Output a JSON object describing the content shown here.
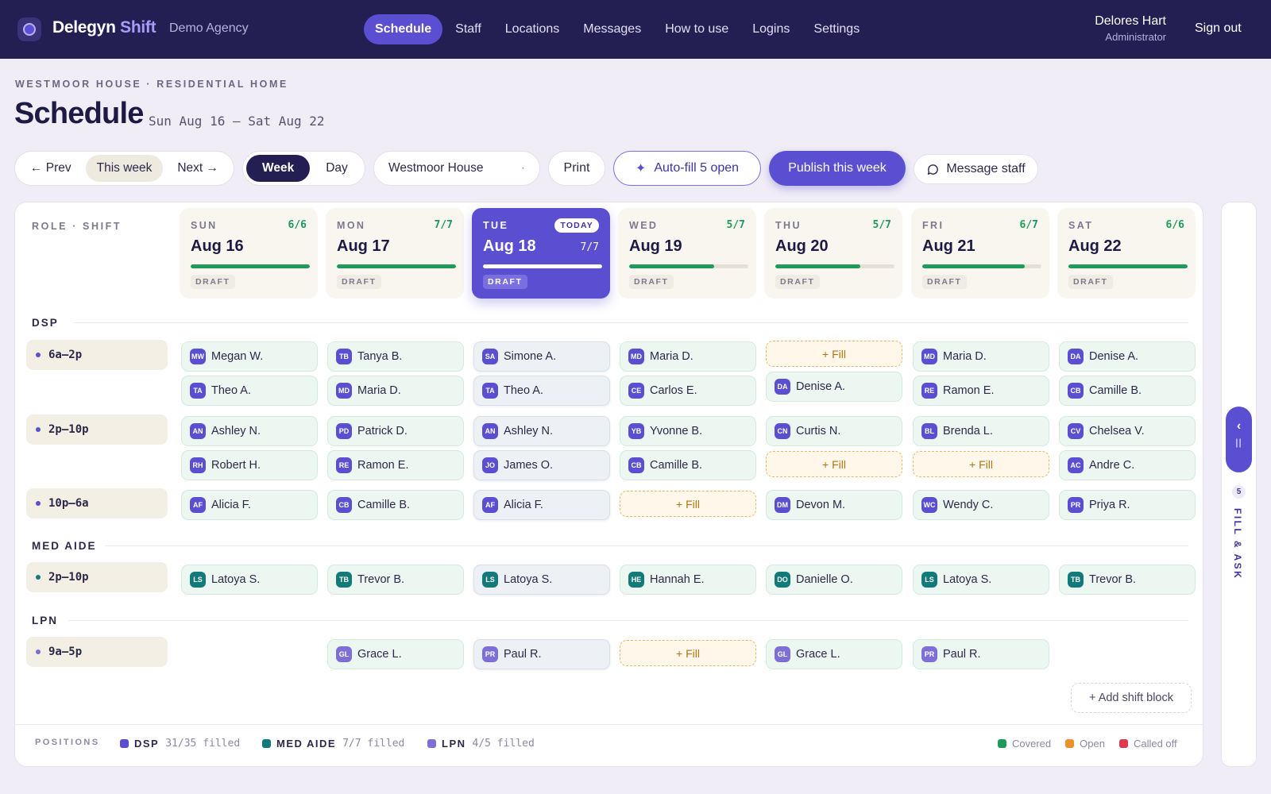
{
  "topbar": {
    "brand_main": "Delegyn",
    "brand_accent": "Shift",
    "agency": "Demo Agency",
    "nav": [
      {
        "label": "Schedule",
        "active": true
      },
      {
        "label": "Staff"
      },
      {
        "label": "Locations"
      },
      {
        "label": "Messages"
      },
      {
        "label": "How to use"
      },
      {
        "label": "Logins"
      },
      {
        "label": "Settings"
      }
    ],
    "user_name": "Delores Hart",
    "user_role": "Administrator",
    "sign_out": "Sign out"
  },
  "header": {
    "breadcrumb": "WESTMOOR HOUSE · RESIDENTIAL HOME",
    "title": "Schedule",
    "range": "Sun Aug 16 — Sat Aug 22"
  },
  "toolbar": {
    "prev": "← Prev",
    "this_week": "This week",
    "next": "Next →",
    "week": "Week",
    "day": "Day",
    "location": "Westmoor House",
    "location_caret": "·",
    "print": "Print",
    "autofill_icon": "✦",
    "autofill": "Auto-fill 5 open",
    "publish": "Publish this week",
    "message": "Message staff"
  },
  "grid": {
    "role_shift_header": "ROLE · SHIFT",
    "draft_label": "DRAFT",
    "today_label": "TODAY",
    "days": [
      {
        "dow": "SUN",
        "date": "Aug 16",
        "count": "6/6",
        "fill": 1.0
      },
      {
        "dow": "MON",
        "date": "Aug 17",
        "count": "7/7",
        "fill": 1.0
      },
      {
        "dow": "TUE",
        "date": "Aug 18",
        "count": "7/7",
        "fill": 1.0,
        "today": true
      },
      {
        "dow": "WED",
        "date": "Aug 19",
        "count": "5/7",
        "fill": 0.714
      },
      {
        "dow": "THU",
        "date": "Aug 20",
        "count": "5/7",
        "fill": 0.714
      },
      {
        "dow": "FRI",
        "date": "Aug 21",
        "count": "6/7",
        "fill": 0.857
      },
      {
        "dow": "SAT",
        "date": "Aug 22",
        "count": "6/6",
        "fill": 1.0
      }
    ],
    "sections": {
      "dsp": "DSP",
      "med_aide": "MED AIDE",
      "lpn": "LPN"
    },
    "shifts": {
      "dsp_1": "6a–2p",
      "dsp_2": "2p–10p",
      "dsp_3": "10p–6a",
      "med_1": "2p–10p",
      "lpn_1": "9a–5p"
    },
    "fill_label": "+ Fill",
    "add_shift_block": "+ Add shift block",
    "dsp_color": "#5a4fd0",
    "med_color": "#137a7a",
    "lpn_color": "#7e6fd6",
    "assignments": {
      "r0": [
        [
          {
            "i": "MW",
            "n": "Megan W."
          },
          {
            "i": "TA",
            "n": "Theo A."
          }
        ],
        [
          {
            "i": "TB",
            "n": "Tanya B."
          },
          {
            "i": "MD",
            "n": "Maria D."
          }
        ],
        [
          {
            "i": "SA",
            "n": "Simone A."
          },
          {
            "i": "TA",
            "n": "Theo A."
          }
        ],
        [
          {
            "i": "MD",
            "n": "Maria D."
          },
          {
            "i": "CE",
            "n": "Carlos E."
          }
        ],
        [
          {
            "fill": true
          },
          {
            "i": "DA",
            "n": "Denise A."
          }
        ],
        [
          {
            "i": "MD",
            "n": "Maria D."
          },
          {
            "i": "RE",
            "n": "Ramon E."
          }
        ],
        [
          {
            "i": "DA",
            "n": "Denise A."
          },
          {
            "i": "CB",
            "n": "Camille B."
          }
        ]
      ],
      "r1": [
        [
          {
            "i": "AN",
            "n": "Ashley N."
          },
          {
            "i": "RH",
            "n": "Robert H."
          }
        ],
        [
          {
            "i": "PD",
            "n": "Patrick D."
          },
          {
            "i": "RE",
            "n": "Ramon E."
          }
        ],
        [
          {
            "i": "AN",
            "n": "Ashley N."
          },
          {
            "i": "JO",
            "n": "James O."
          }
        ],
        [
          {
            "i": "YB",
            "n": "Yvonne B."
          },
          {
            "i": "CB",
            "n": "Camille B."
          }
        ],
        [
          {
            "i": "CN",
            "n": "Curtis N."
          },
          {
            "fill": true
          }
        ],
        [
          {
            "i": "BL",
            "n": "Brenda L."
          },
          {
            "fill": true
          }
        ],
        [
          {
            "i": "CV",
            "n": "Chelsea V."
          },
          {
            "i": "AC",
            "n": "Andre C."
          }
        ]
      ],
      "r2": [
        [
          {
            "i": "AF",
            "n": "Alicia F."
          }
        ],
        [
          {
            "i": "CB",
            "n": "Camille B."
          }
        ],
        [
          {
            "i": "AF",
            "n": "Alicia F."
          }
        ],
        [
          {
            "fill": true
          }
        ],
        [
          {
            "i": "DM",
            "n": "Devon M."
          }
        ],
        [
          {
            "i": "WC",
            "n": "Wendy C."
          }
        ],
        [
          {
            "i": "PR",
            "n": "Priya R."
          }
        ]
      ],
      "r3": [
        [
          {
            "i": "LS",
            "n": "Latoya S."
          }
        ],
        [
          {
            "i": "TB",
            "n": "Trevor B."
          }
        ],
        [
          {
            "i": "LS",
            "n": "Latoya S."
          }
        ],
        [
          {
            "i": "HE",
            "n": "Hannah E."
          }
        ],
        [
          {
            "i": "DO",
            "n": "Danielle O."
          }
        ],
        [
          {
            "i": "LS",
            "n": "Latoya S."
          }
        ],
        [
          {
            "i": "TB",
            "n": "Trevor B."
          }
        ]
      ],
      "r4": [
        [],
        [
          {
            "i": "GL",
            "n": "Grace L."
          }
        ],
        [
          {
            "i": "PR",
            "n": "Paul R."
          }
        ],
        [
          {
            "fill": true
          }
        ],
        [
          {
            "i": "GL",
            "n": "Grace L."
          }
        ],
        [
          {
            "i": "PR",
            "n": "Paul R."
          }
        ],
        []
      ]
    }
  },
  "footer": {
    "positions": "POSITIONS",
    "dsp_name": "DSP",
    "dsp_stat": "31/35 filled",
    "med_name": "MED AIDE",
    "med_stat": "7/7 filled",
    "lpn_name": "LPN",
    "lpn_stat": "4/5 filled",
    "legend_covered": "Covered",
    "legend_open": "Open",
    "legend_called_off": "Called off",
    "covered_color": "#1f9a5b",
    "open_color": "#e8922b",
    "called_off_color": "#e0394f"
  },
  "rail": {
    "count": "5",
    "label": "FILL & ASK",
    "chevron": "‹",
    "grip": "||"
  }
}
